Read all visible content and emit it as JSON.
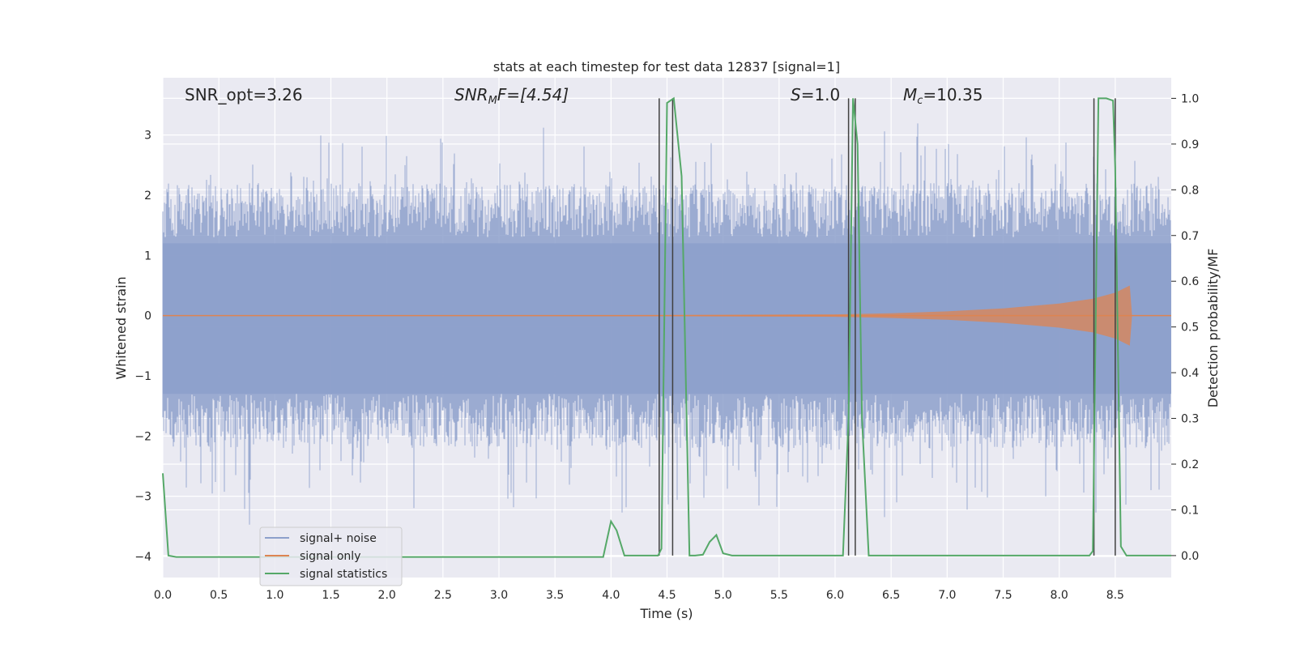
{
  "chart_data": {
    "type": "line",
    "title": "stats at each timestep for test data 12837 [signal=1]",
    "xlabel": "Time (s)",
    "ylabel_left": "Whitened strain",
    "ylabel_right": "Detection probability/MF",
    "xlim": [
      0.0,
      9.0
    ],
    "ylim_left": [
      -4.35,
      3.95
    ],
    "ylim_right": [
      -0.048,
      1.045
    ],
    "xticks": [
      "0.0",
      "0.5",
      "1.0",
      "1.5",
      "2.0",
      "2.5",
      "3.0",
      "3.5",
      "4.0",
      "4.5",
      "5.0",
      "5.5",
      "6.0",
      "6.5",
      "7.0",
      "7.5",
      "8.0",
      "8.5"
    ],
    "yticks_left": [
      "−4",
      "−3",
      "−2",
      "−1",
      "0",
      "1",
      "2",
      "3"
    ],
    "yticks_right": [
      "0.0",
      "0.1",
      "0.2",
      "0.3",
      "0.4",
      "0.5",
      "0.6",
      "0.7",
      "0.8",
      "0.9",
      "1.0"
    ],
    "grid": true,
    "legend_position": "lower-left",
    "annotations": {
      "snr_opt": "SNR_opt=3.26",
      "snr_mf_main": "SNR",
      "snr_mf_sub": "M",
      "snr_mf_rest": "F=[4.54]",
      "s_italic": "S",
      "s_rest": "=1.0",
      "mc_main": "M",
      "mc_sub": "c",
      "mc_rest": "=10.35"
    },
    "vertical_lines_x": [
      4.43,
      4.55,
      6.12,
      6.18,
      8.31,
      8.5
    ],
    "series": [
      {
        "name": "signal+ noise",
        "color": "#8da0cb",
        "description_range": [
          -3.8,
          3.5
        ],
        "axis": "left"
      },
      {
        "name": "signal only",
        "color": "#dd8452",
        "axis": "left",
        "envelope_x": [
          0.0,
          4.5,
          6.0,
          6.5,
          7.0,
          7.5,
          8.0,
          8.3,
          8.5,
          8.63,
          8.65,
          9.0
        ],
        "envelope_amp": [
          0.0,
          0.01,
          0.02,
          0.04,
          0.07,
          0.12,
          0.2,
          0.28,
          0.38,
          0.5,
          0.0,
          0.0
        ]
      },
      {
        "name": "signal statistics",
        "color": "#55a868",
        "axis": "right",
        "x": [
          0.0,
          0.05,
          0.12,
          3.93,
          4.0,
          4.05,
          4.12,
          4.42,
          4.45,
          4.5,
          4.56,
          4.63,
          4.7,
          4.75,
          4.82,
          4.88,
          4.94,
          5.0,
          5.08,
          6.07,
          6.12,
          6.16,
          6.2,
          6.24,
          6.3,
          6.35,
          8.27,
          8.3,
          8.35,
          8.42,
          8.48,
          8.5,
          8.55,
          8.6,
          8.65,
          9.0
        ],
        "y": [
          0.18,
          0.0,
          -0.003,
          -0.003,
          0.075,
          0.055,
          0.0,
          0.0,
          0.015,
          0.99,
          1.0,
          0.83,
          0.0,
          0.0,
          0.002,
          0.03,
          0.045,
          0.005,
          0.0,
          0.0,
          0.3,
          1.0,
          0.9,
          0.3,
          0.0,
          0.0,
          0.0,
          0.01,
          1.0,
          1.0,
          0.995,
          0.85,
          0.02,
          0.0,
          0.0,
          0.0
        ]
      }
    ]
  }
}
